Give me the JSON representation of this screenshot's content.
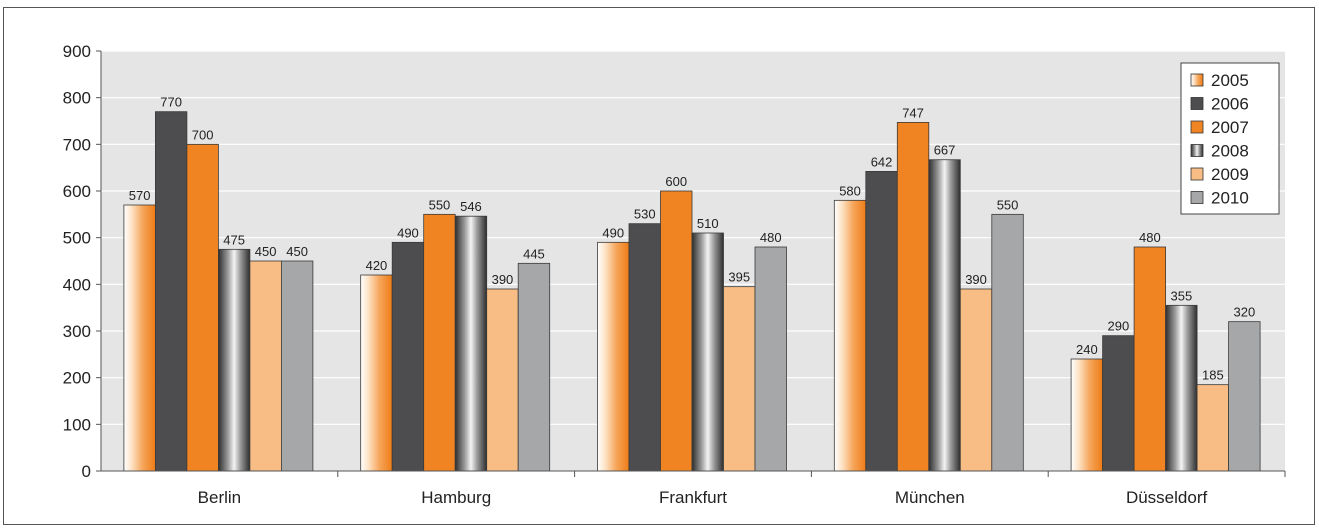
{
  "chart_data": {
    "type": "bar",
    "title": "",
    "xlabel": "",
    "ylabel": "",
    "categories": [
      "Berlin",
      "Hamburg",
      "Frankfurt",
      "München",
      "Düsseldorf"
    ],
    "ylim": [
      0,
      900
    ],
    "yticks": [
      0,
      100,
      200,
      300,
      400,
      500,
      600,
      700,
      800,
      900
    ],
    "grid": true,
    "legend_position": "top-right",
    "series": [
      {
        "name": "2005",
        "values": [
          570,
          420,
          490,
          580,
          240
        ],
        "color": "#f08a2a",
        "style": "gradient-light-orange"
      },
      {
        "name": "2006",
        "values": [
          770,
          490,
          530,
          642,
          290
        ],
        "color": "#4d4d4f",
        "style": "solid"
      },
      {
        "name": "2007",
        "values": [
          700,
          550,
          600,
          747,
          480
        ],
        "color": "#f18422",
        "style": "solid"
      },
      {
        "name": "2008",
        "values": [
          475,
          546,
          510,
          667,
          355
        ],
        "color": "#555555",
        "style": "gradient-metal"
      },
      {
        "name": "2009",
        "values": [
          450,
          390,
          395,
          390,
          185
        ],
        "color": "#f8bd84",
        "style": "solid"
      },
      {
        "name": "2010",
        "values": [
          450,
          445,
          480,
          550,
          320
        ],
        "color": "#a6a7a9",
        "style": "solid"
      }
    ]
  }
}
